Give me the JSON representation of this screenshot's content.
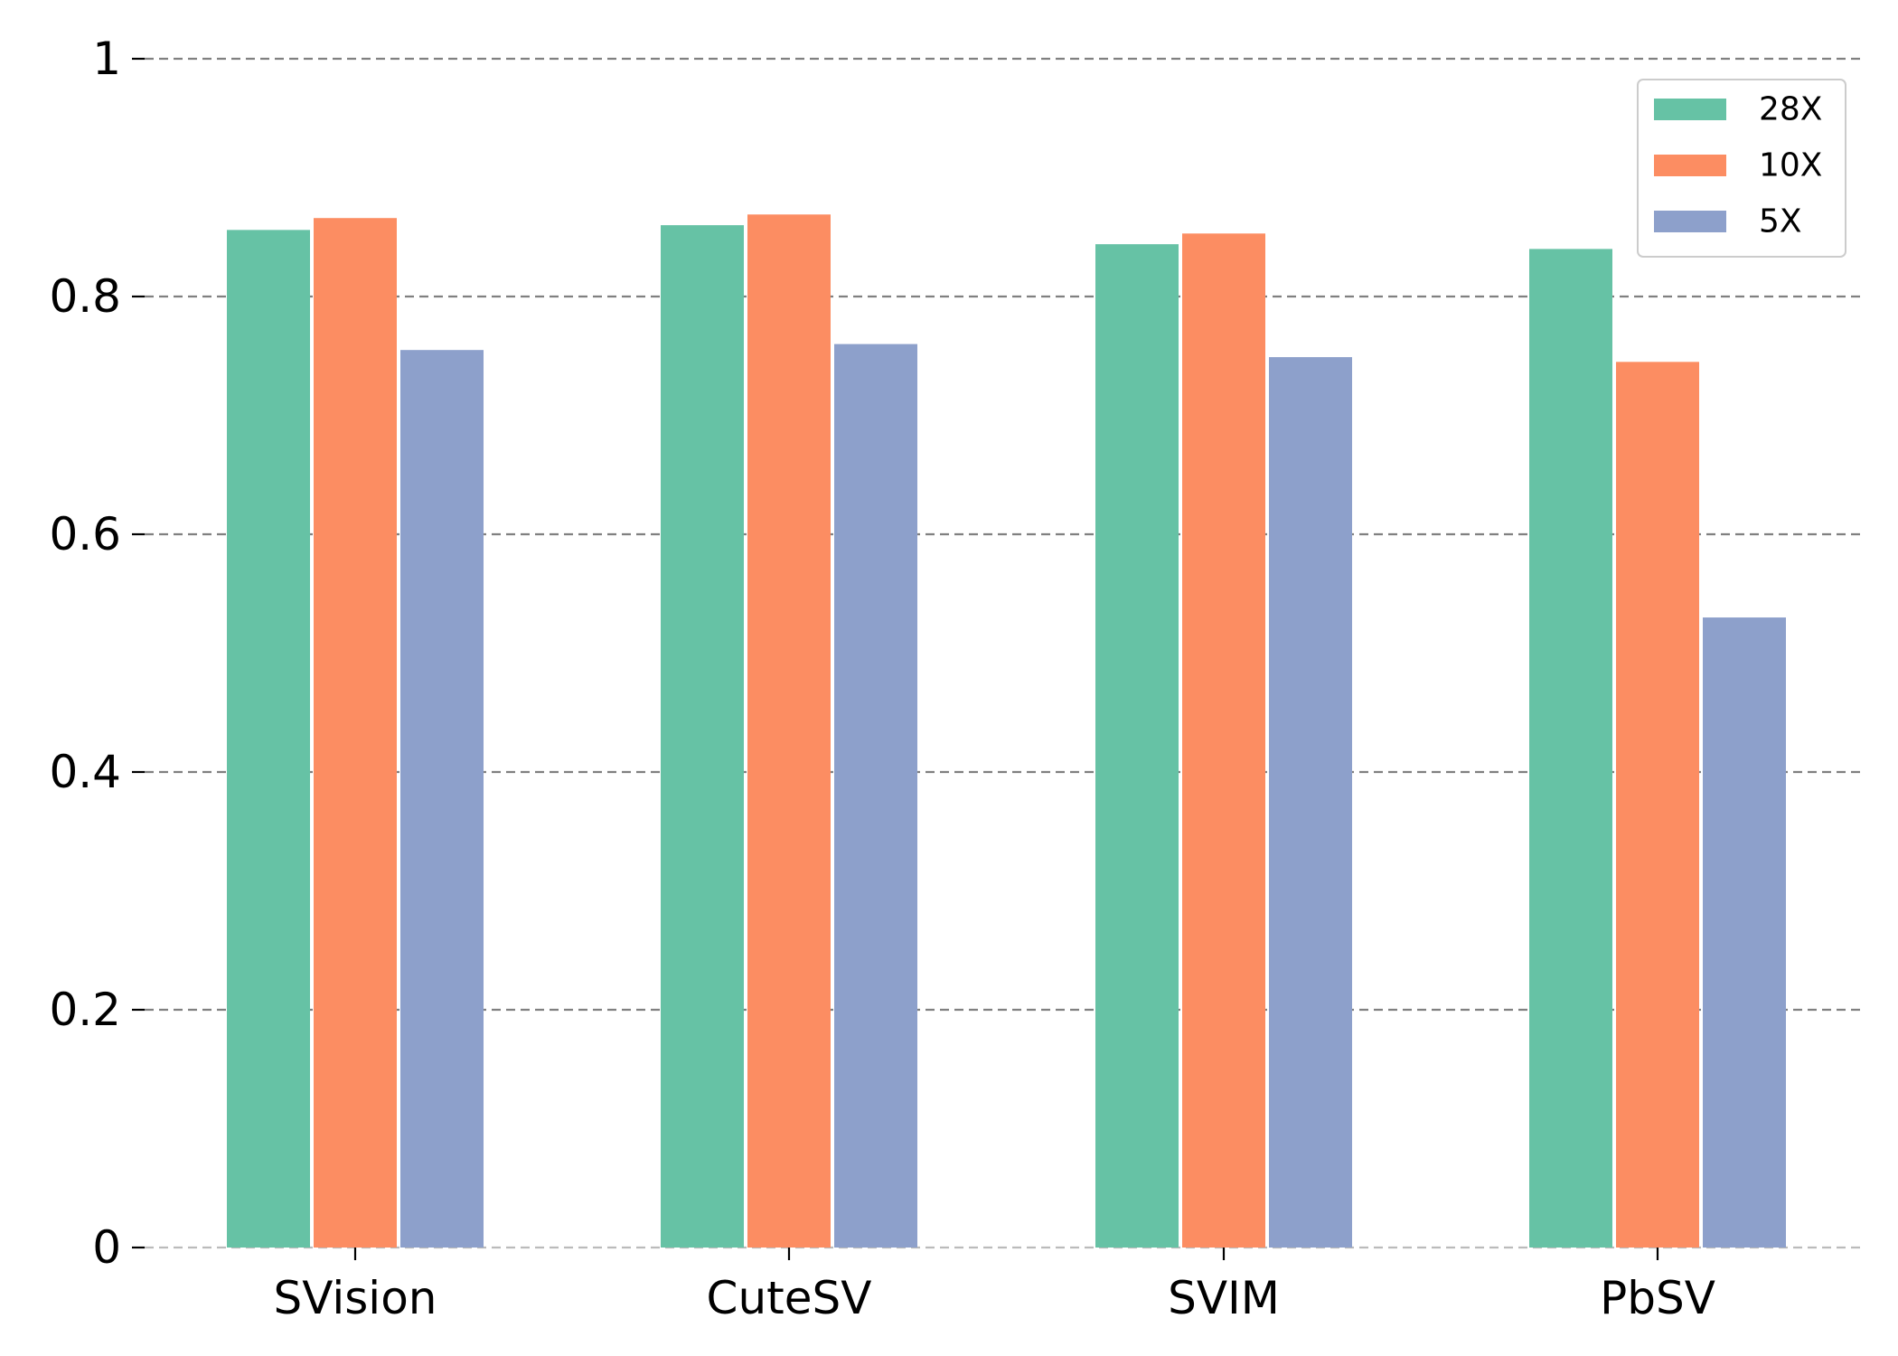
{
  "chart_data": {
    "type": "bar",
    "categories": [
      "SVision",
      "CuteSV",
      "SVIM",
      "PbSV"
    ],
    "series": [
      {
        "name": "28X",
        "color": "#66c2a5",
        "values": [
          0.856,
          0.86,
          0.844,
          0.84
        ]
      },
      {
        "name": "10X",
        "color": "#fc8d62",
        "values": [
          0.866,
          0.869,
          0.853,
          0.745
        ]
      },
      {
        "name": "5X",
        "color": "#8da0cb",
        "values": [
          0.755,
          0.76,
          0.749,
          0.53
        ]
      }
    ],
    "yticks": [
      {
        "value": 0,
        "label": "0"
      },
      {
        "value": 0.2,
        "label": "0.2"
      },
      {
        "value": 0.4,
        "label": "0.4"
      },
      {
        "value": 0.6,
        "label": "0.6"
      },
      {
        "value": 0.8,
        "label": "0.8"
      },
      {
        "value": 1,
        "label": "1"
      }
    ],
    "ylim": [
      0,
      1
    ],
    "grid": "horizontal dashed",
    "legend_position": "top-right",
    "title": "",
    "xlabel": "",
    "ylabel": ""
  }
}
